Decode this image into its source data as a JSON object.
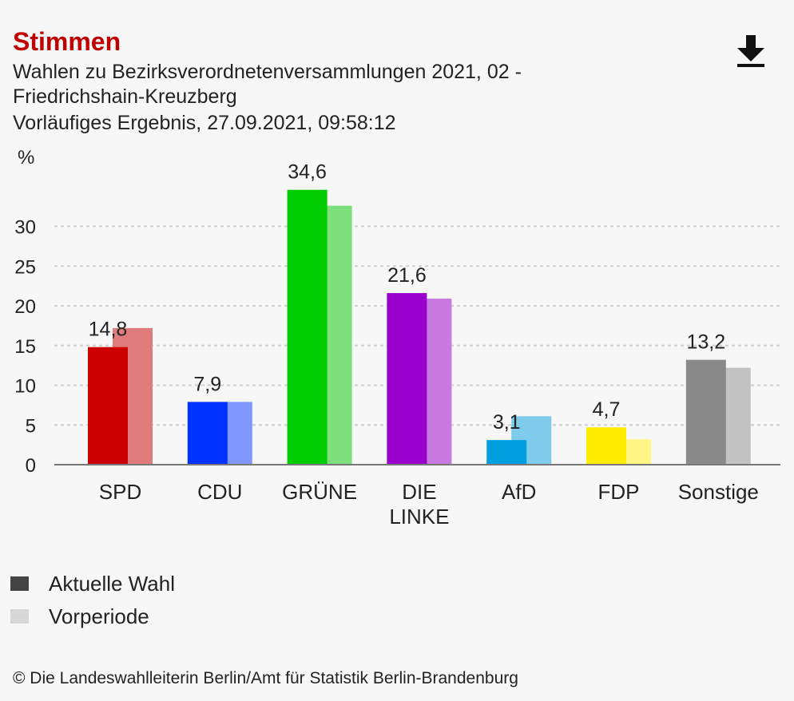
{
  "header": {
    "title": "Stimmen",
    "subtitle_line1": "Wahlen zu Bezirksverordnetenversammlungen 2021, 02 -",
    "subtitle_line2": "Friedrichshain-Kreuzberg",
    "subtitle_line3": "Vorläufiges Ergebnis, 27.09.2021, 09:58:12",
    "download_icon": "download-icon"
  },
  "chart_data": {
    "type": "bar",
    "ylabel": "%",
    "ylim": [
      0,
      37
    ],
    "yticks": [
      0,
      5,
      10,
      15,
      20,
      25,
      30
    ],
    "grid": true,
    "categories": [
      {
        "name": "SPD",
        "label_lines": [
          "SPD"
        ]
      },
      {
        "name": "CDU",
        "label_lines": [
          "CDU"
        ]
      },
      {
        "name": "GRÜNE",
        "label_lines": [
          "GRÜNE"
        ]
      },
      {
        "name": "DIE LINKE",
        "label_lines": [
          "DIE",
          "LINKE"
        ]
      },
      {
        "name": "AfD",
        "label_lines": [
          "AfD"
        ]
      },
      {
        "name": "FDP",
        "label_lines": [
          "FDP"
        ]
      },
      {
        "name": "Sonstige",
        "label_lines": [
          "Sonstige"
        ]
      }
    ],
    "series": [
      {
        "name": "Aktuelle Wahl",
        "values": [
          14.8,
          7.9,
          34.6,
          21.6,
          3.1,
          4.7,
          13.2
        ],
        "value_labels": [
          "14,8",
          "7,9",
          "34,6",
          "21,6",
          "3,1",
          "4,7",
          "13,2"
        ],
        "colors": [
          "#cc0000",
          "#0033ff",
          "#00cc00",
          "#9900cc",
          "#009fe0",
          "#ffed00",
          "#898989"
        ]
      },
      {
        "name": "Vorperiode",
        "values": [
          17.2,
          7.9,
          32.6,
          20.9,
          6.1,
          3.2,
          12.2
        ],
        "colors": [
          "#e07c7c",
          "#7f97ff",
          "#7de07d",
          "#c97ae0",
          "#7fcbec",
          "#fff685",
          "#c2c2c2"
        ]
      }
    ]
  },
  "legend": [
    {
      "label": "Aktuelle Wahl",
      "color": "#444444"
    },
    {
      "label": "Vorperiode",
      "color": "#d7d7d7"
    }
  ],
  "footer": "© Die Landeswahlleiterin Berlin/Amt für Statistik Berlin-Brandenburg"
}
